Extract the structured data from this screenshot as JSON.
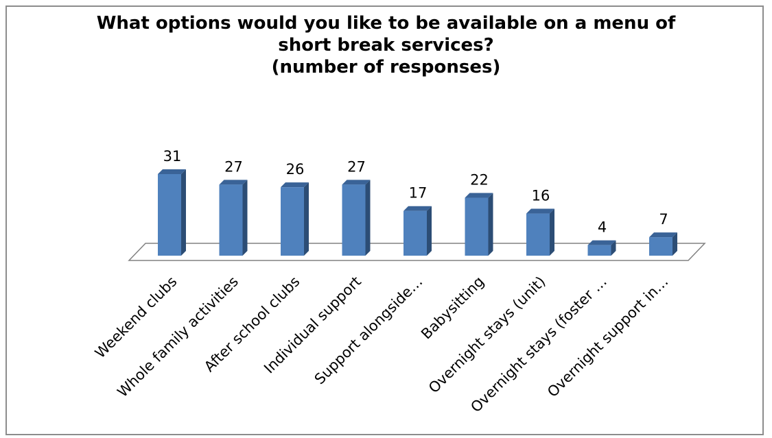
{
  "chart_data": {
    "type": "bar",
    "title_lines": [
      "What options would you like to be available on a menu of",
      "short break services?",
      "(number of responses)"
    ],
    "categories": [
      "Weekend clubs",
      "Whole family activities",
      "After school clubs",
      "Individual support",
      "Support alongside…",
      "Babysitting",
      "Overnight stays (unit)",
      "Overnight stays (foster …",
      "Overnight support in…"
    ],
    "values": [
      31,
      27,
      26,
      27,
      17,
      22,
      16,
      4,
      7
    ],
    "ylim": [
      0,
      31
    ],
    "grid": false,
    "legend": "none",
    "style": "3d-column",
    "colors": {
      "bar_front": "#4f81bd",
      "bar_side": "#2c4d75",
      "bar_top": "#3a6397",
      "floor": "#ffffff",
      "floor_stroke": "#808080"
    }
  }
}
